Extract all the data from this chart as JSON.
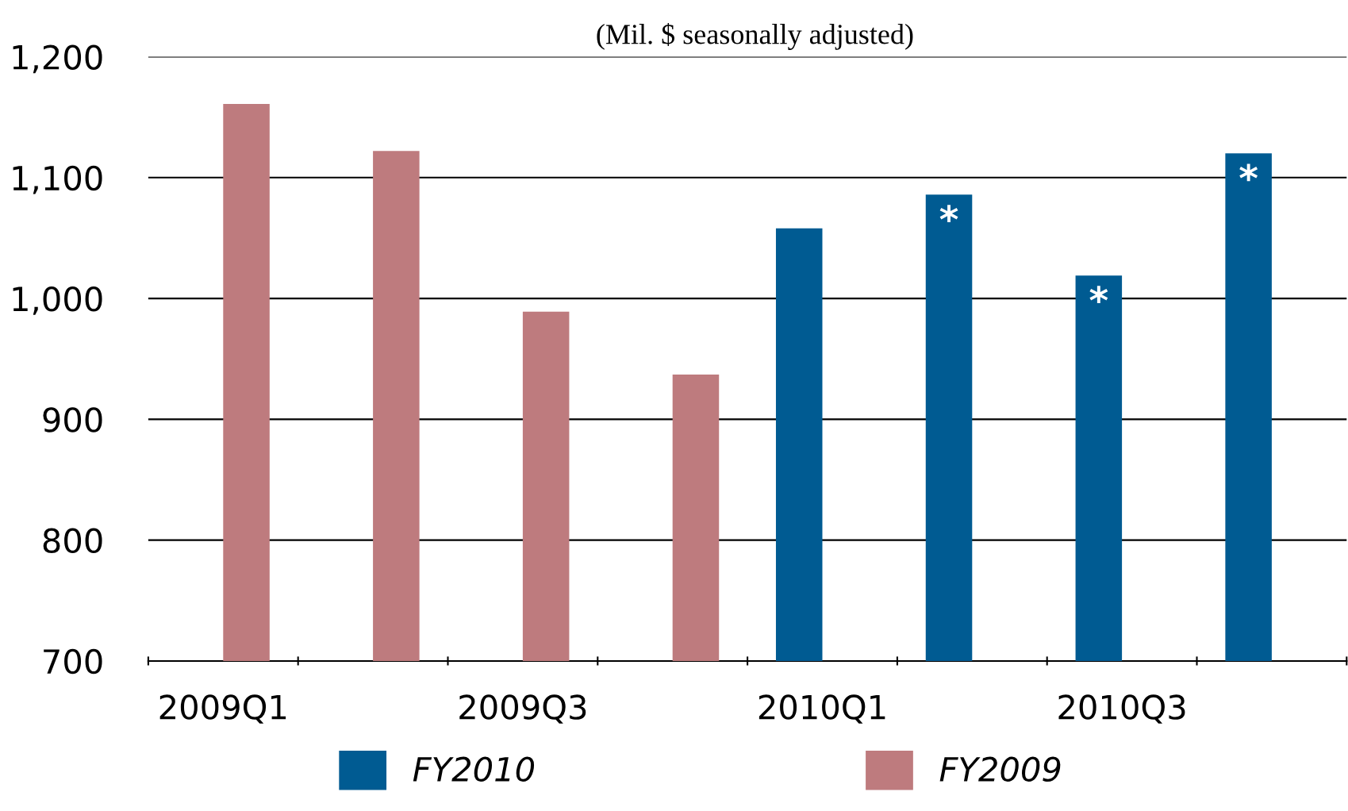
{
  "chart_data": {
    "type": "bar",
    "subtitle": "(Mil. $ seasonally adjusted)",
    "categories": [
      "2009Q1",
      null,
      "2009Q3",
      null,
      "2010Q1",
      null,
      "2010Q3",
      null
    ],
    "series": [
      {
        "name": "FY2010",
        "color": "#005b92",
        "values": [
          null,
          null,
          null,
          null,
          1058,
          1086,
          1019,
          1120
        ],
        "value_labels": [
          null,
          null,
          null,
          null,
          null,
          "*",
          "*",
          "*"
        ]
      },
      {
        "name": "FY2009",
        "color": "#be7b7e",
        "values": [
          1161,
          1122,
          989,
          937,
          null,
          null,
          null,
          null
        ]
      }
    ],
    "ylim": [
      700,
      1200
    ],
    "yticks": [
      700,
      800,
      900,
      {
        "value": 1000,
        "label": "1,000"
      },
      {
        "value": 1100,
        "label": "1,100"
      },
      {
        "value": 1200,
        "label": "1,200"
      }
    ],
    "grid": "y",
    "legend": "bottom"
  }
}
